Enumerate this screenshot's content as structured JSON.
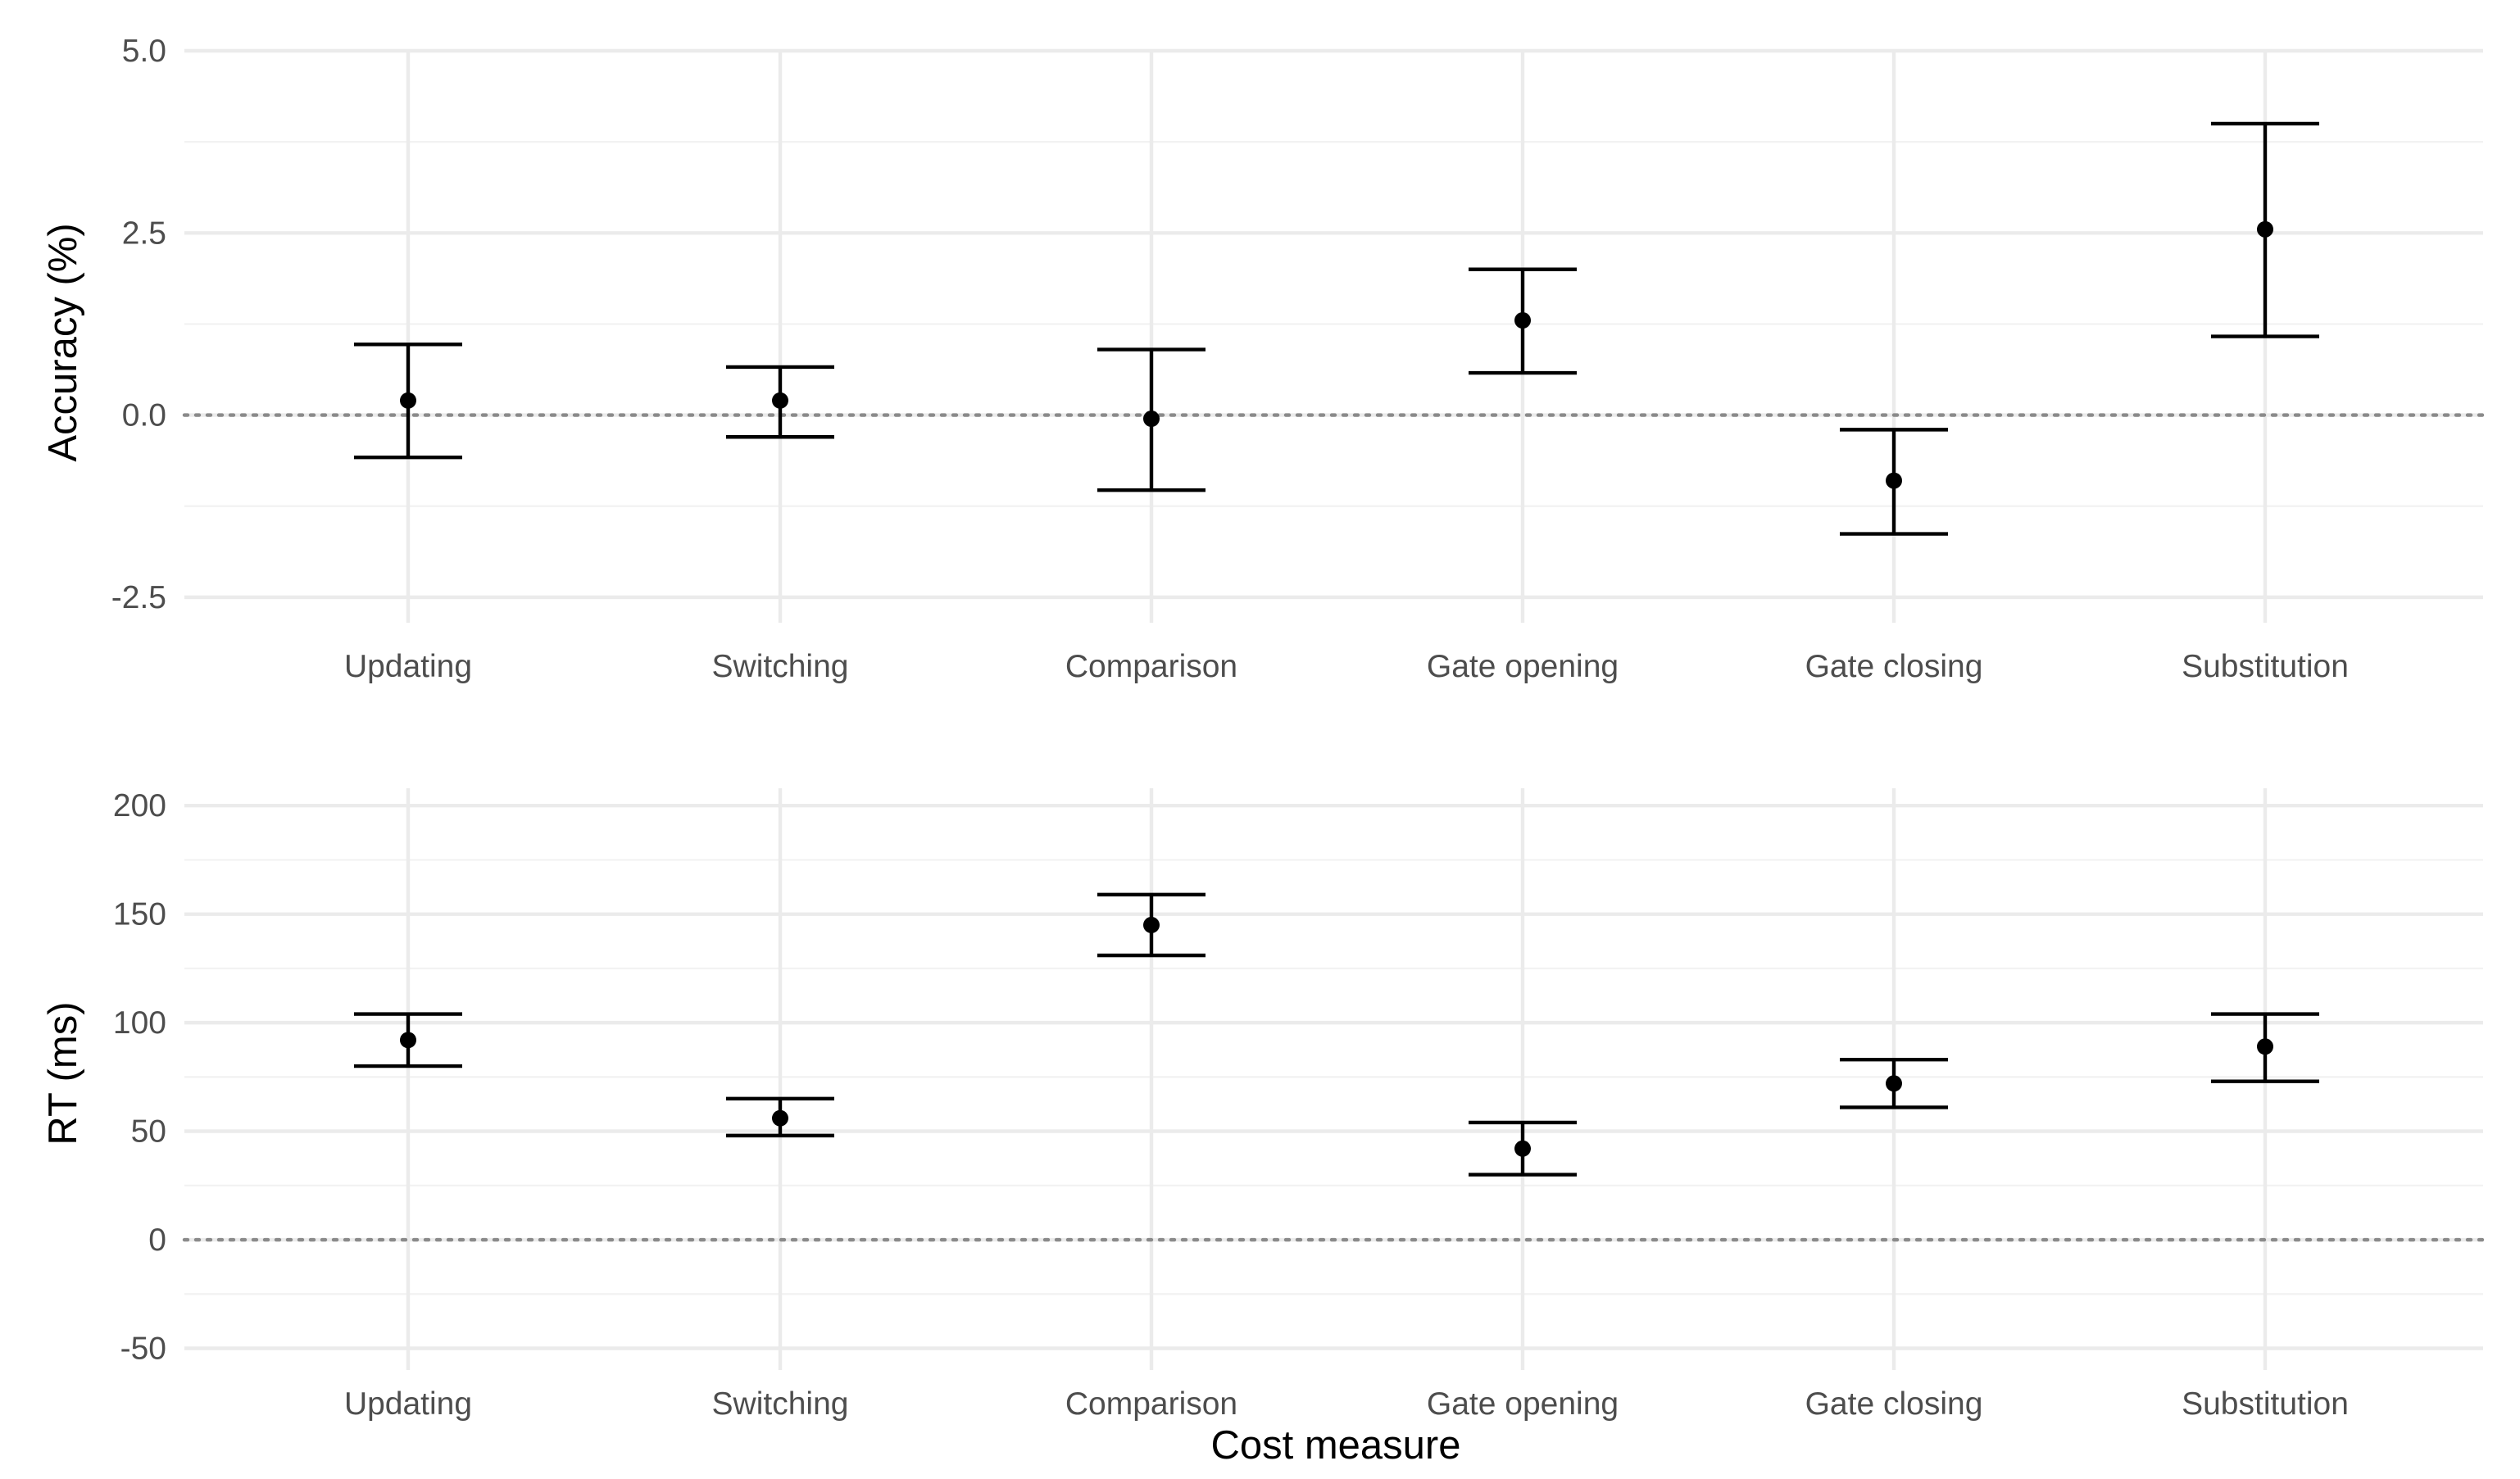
{
  "chart_data": [
    {
      "type": "errorbar",
      "id": "accuracy",
      "ylabel": "Accuracy (%)",
      "xlabel": "",
      "categories": [
        "Updating",
        "Switching",
        "Comparison",
        "Gate opening",
        "Gate closing",
        "Substitution"
      ],
      "estimates": [
        0.2,
        0.2,
        -0.05,
        1.3,
        -0.9,
        2.55
      ],
      "lower": [
        -0.58,
        -0.3,
        -1.03,
        0.58,
        -1.63,
        1.08
      ],
      "upper": [
        0.97,
        0.66,
        0.9,
        2.0,
        -0.2,
        4.0
      ],
      "ylim": [
        -2.85,
        5.0
      ],
      "yticks": [
        -2.5,
        0.0,
        2.5,
        5.0
      ],
      "ytick_labels": [
        "-2.5",
        "0.0",
        "2.5",
        "5.0"
      ],
      "reference_line": 0,
      "grid": true
    },
    {
      "type": "errorbar",
      "id": "rt",
      "ylabel": "RT (ms)",
      "xlabel": "Cost measure",
      "categories": [
        "Updating",
        "Switching",
        "Comparison",
        "Gate opening",
        "Gate closing",
        "Substitution"
      ],
      "estimates": [
        92,
        56,
        145,
        42,
        72,
        89
      ],
      "lower": [
        80,
        48,
        131,
        30,
        61,
        73
      ],
      "upper": [
        104,
        65,
        159,
        54,
        83,
        104
      ],
      "ylim": [
        -60,
        208
      ],
      "yticks": [
        -50,
        0,
        50,
        100,
        150,
        200
      ],
      "ytick_labels": [
        "-50",
        "0",
        "50",
        "100",
        "150",
        "200"
      ],
      "reference_line": 0,
      "grid": true
    }
  ]
}
